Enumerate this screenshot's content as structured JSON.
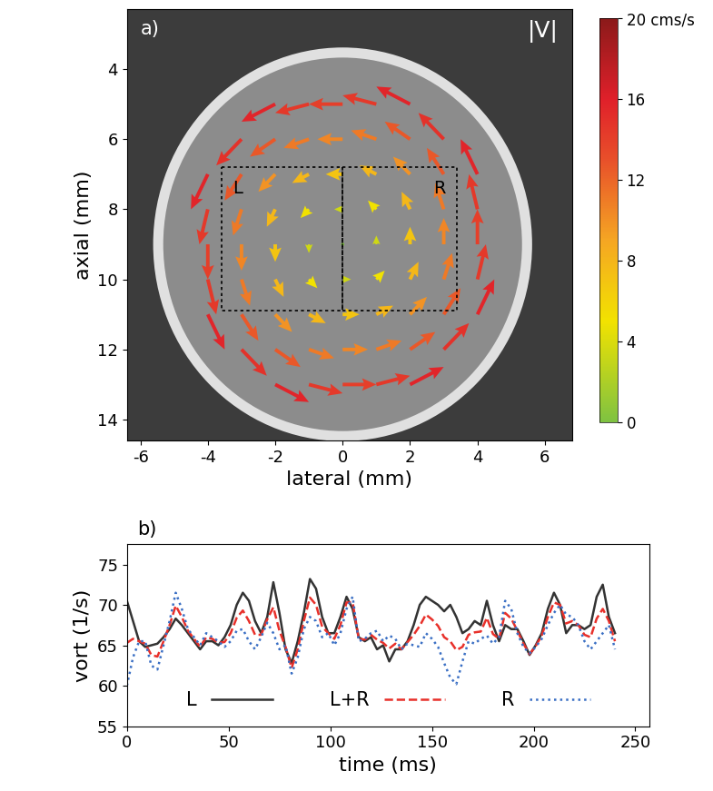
{
  "chart_data": [
    {
      "type": "quiver",
      "panel_label": "a)",
      "annotation": "|V|",
      "x_label": "lateral (mm)",
      "y_label": "axial (mm)",
      "xlim": [
        -6.4,
        6.8
      ],
      "ylim": [
        14.6,
        2.3
      ],
      "xticks": [
        -6,
        -4,
        -2,
        0,
        2,
        4,
        6
      ],
      "yticks": [
        4,
        6,
        8,
        10,
        12,
        14
      ],
      "x": [
        -2,
        -1,
        0,
        1,
        2,
        -3,
        -2,
        -1,
        0,
        1,
        2,
        3,
        -4,
        -3,
        -2,
        -1,
        0,
        1,
        2,
        3,
        4,
        -4,
        -3,
        -2,
        -1,
        0,
        1,
        2,
        3,
        4,
        -4,
        -3,
        -2,
        -1,
        0,
        1,
        2,
        3,
        4,
        -4,
        -3,
        -2,
        -1,
        0,
        1,
        2,
        3,
        4,
        -4,
        -3,
        -2,
        -1,
        0,
        1,
        2,
        3,
        4,
        -3,
        -2,
        -1,
        0,
        1,
        2,
        3,
        -2,
        -1,
        0,
        1,
        2
      ],
      "y": [
        5,
        5,
        5,
        5,
        5,
        6,
        6,
        6,
        6,
        6,
        6,
        6,
        7,
        7,
        7,
        7,
        7,
        7,
        7,
        7,
        7,
        8,
        8,
        8,
        8,
        8,
        8,
        8,
        8,
        8,
        9,
        9,
        9,
        9,
        9,
        9,
        9,
        9,
        9,
        10,
        10,
        10,
        10,
        10,
        10,
        10,
        10,
        10,
        11,
        11,
        11,
        11,
        11,
        11,
        11,
        11,
        11,
        12,
        12,
        12,
        12,
        12,
        12,
        12,
        13,
        13,
        13,
        13,
        13
      ],
      "u": [
        -14,
        -14,
        -14,
        -14,
        -14,
        -10.5,
        -10.5,
        -10.5,
        -10.5,
        -10.5,
        -10.5,
        -10.5,
        -7,
        -7,
        -7,
        -7,
        -7,
        -7,
        -7,
        -7,
        -7,
        -3.5,
        -3.5,
        -3.5,
        -3.5,
        -3.5,
        -3.5,
        -3.5,
        -3.5,
        -3.5,
        0,
        0,
        0,
        0,
        0,
        0,
        0,
        0,
        0,
        3.5,
        3.5,
        3.5,
        3.5,
        3.5,
        3.5,
        3.5,
        3.5,
        3.5,
        7,
        7,
        7,
        7,
        7,
        7,
        7,
        7,
        7,
        10.5,
        10.5,
        10.5,
        10.5,
        10.5,
        10.5,
        10.5,
        14,
        14,
        14,
        14,
        14
      ],
      "v": [
        7,
        3.5,
        0,
        -3.5,
        -7,
        10.5,
        7,
        3.5,
        0,
        -3.5,
        -7,
        -10.5,
        14,
        10.5,
        7,
        3.5,
        0,
        -3.5,
        -7,
        -10.5,
        -14,
        14,
        10.5,
        7,
        3.5,
        0,
        -3.5,
        -7,
        -10.5,
        -14,
        14,
        10.5,
        7,
        3.5,
        0,
        -3.5,
        -7,
        -10.5,
        -14,
        14,
        10.5,
        7,
        3.5,
        0,
        -3.5,
        -7,
        -10.5,
        -14,
        14,
        10.5,
        7,
        3.5,
        0,
        -3.5,
        -7,
        -10.5,
        -14,
        10.5,
        7,
        3.5,
        0,
        -3.5,
        -7,
        -10.5,
        7,
        3.5,
        0,
        -3.5,
        -7
      ],
      "regions": [
        {
          "name": "L",
          "x": [
            -3.6,
            0
          ],
          "y": [
            6.8,
            10.9
          ]
        },
        {
          "name": "R",
          "x": [
            0,
            3.4
          ],
          "y": [
            6.8,
            10.9
          ]
        }
      ],
      "colorbar": {
        "ylim": [
          0,
          20
        ],
        "yticks": [
          0,
          4,
          8,
          12,
          16,
          {
            "value": 20,
            "label": "20 cms/s"
          }
        ]
      }
    },
    {
      "type": "line",
      "panel_label": "b)",
      "x_label": "time (ms)",
      "y_label": "vort (1/s)",
      "xlim": [
        0,
        257
      ],
      "ylim": [
        55,
        77.5
      ],
      "xticks": [
        0,
        50,
        100,
        150,
        200,
        250
      ],
      "yticks": [
        55,
        60,
        65,
        70,
        75
      ],
      "legend": "lower center",
      "x": [
        0,
        3,
        6,
        9,
        12,
        15,
        18,
        21,
        24,
        27,
        30,
        33,
        36,
        39,
        42,
        45,
        48,
        51,
        54,
        57,
        60,
        63,
        66,
        69,
        72,
        75,
        78,
        81,
        84,
        87,
        90,
        93,
        96,
        99,
        102,
        105,
        108,
        111,
        114,
        117,
        120,
        123,
        126,
        129,
        132,
        135,
        138,
        141,
        144,
        147,
        150,
        153,
        156,
        159,
        162,
        165,
        168,
        171,
        174,
        177,
        180,
        183,
        186,
        189,
        192,
        195,
        198,
        201,
        204,
        207,
        210,
        213,
        216,
        219,
        222,
        225,
        228,
        231,
        234,
        237,
        240
      ],
      "series": [
        {
          "name": "L",
          "color": "#333333",
          "line_style": "solid",
          "values": [
            70.5,
            68,
            65.5,
            64.8,
            65,
            65.2,
            66,
            67,
            68.3,
            67.5,
            66.5,
            65.5,
            64.5,
            65.5,
            65.5,
            65,
            66,
            67.5,
            70,
            71.5,
            70.5,
            68,
            66.5,
            68.5,
            72.8,
            69,
            64.5,
            62.8,
            65.5,
            69,
            73.2,
            72,
            68.5,
            66.5,
            66.5,
            68.5,
            71,
            69.5,
            66,
            65.5,
            66,
            64.5,
            65,
            63,
            64.5,
            64.5,
            65.5,
            67.5,
            70,
            71,
            70.5,
            70,
            69.2,
            70,
            68.5,
            66.5,
            67,
            68,
            67.5,
            70.5,
            67.5,
            65.5,
            67.5,
            67,
            67,
            65.5,
            63.8,
            65,
            66.5,
            69.5,
            71.5,
            70,
            66.5,
            67.5,
            67.5,
            67,
            67.5,
            71,
            72.5,
            68.5,
            66.5
          ]
        },
        {
          "name": "L+R",
          "color": "#e8302a",
          "line_style": "dashed",
          "values": [
            65.3,
            65.8,
            65.5,
            65.2,
            63.8,
            63.6,
            65.5,
            67.5,
            69.9,
            68.5,
            66.8,
            65.8,
            64.8,
            66,
            65.8,
            65.3,
            65.4,
            66.5,
            68.4,
            69.3,
            68,
            66.3,
            66.3,
            68.2,
            69.7,
            66.8,
            64.8,
            62.2,
            64.5,
            68,
            70.9,
            70,
            67.3,
            66.5,
            65.8,
            67.5,
            70.3,
            70.3,
            65.8,
            65.7,
            66.3,
            65.7,
            65.3,
            64.6,
            65.2,
            64.5,
            65.4,
            66.3,
            67.4,
            68.8,
            68.2,
            67.4,
            66,
            65.5,
            64.4,
            64.8,
            66.3,
            66.6,
            66.7,
            68.4,
            66.4,
            65.8,
            69,
            68.3,
            66.8,
            65.2,
            63.9,
            64.9,
            66.2,
            68.5,
            70.3,
            70,
            67.7,
            68,
            67.5,
            66.3,
            66,
            68.3,
            69.5,
            68,
            65.5
          ]
        },
        {
          "name": "R",
          "color": "#3a6fc4",
          "line_style": "dotted",
          "values": [
            60,
            63.5,
            65.5,
            65.5,
            62.5,
            62,
            65,
            68,
            71.5,
            69.5,
            67,
            66,
            65,
            66.5,
            66,
            65.5,
            64.8,
            65.5,
            66.8,
            67,
            65.5,
            64.5,
            66,
            67.8,
            66.5,
            64.5,
            65,
            61.5,
            63.5,
            67,
            68.5,
            68,
            66,
            66.5,
            65,
            66.5,
            69.5,
            71,
            65.5,
            65.8,
            66.5,
            66.8,
            65.5,
            66.2,
            65.8,
            64.5,
            65.2,
            65,
            64.8,
            66.5,
            65.8,
            64.8,
            62.8,
            61,
            60.2,
            63,
            65.5,
            65.2,
            65.8,
            66.2,
            65.2,
            66,
            70.5,
            69.5,
            66.5,
            64.8,
            64,
            64.8,
            65.8,
            67.5,
            69,
            70,
            68.8,
            68.5,
            67.5,
            65.5,
            64.5,
            65.5,
            66.5,
            67.5,
            64.5
          ]
        }
      ]
    }
  ]
}
